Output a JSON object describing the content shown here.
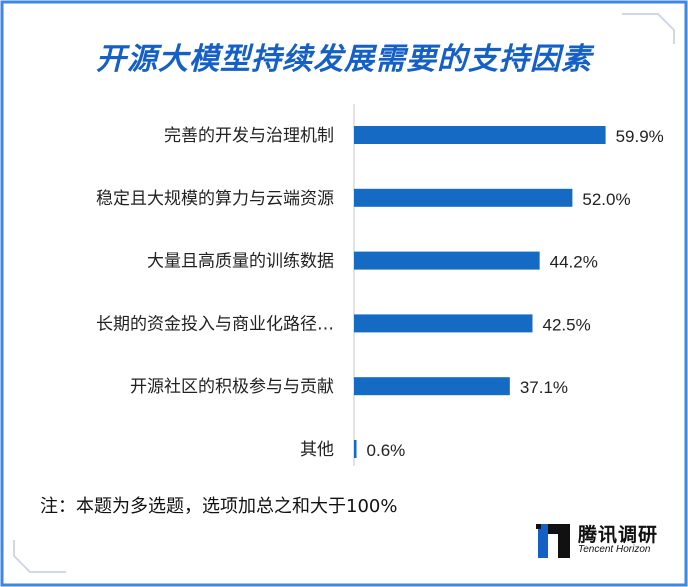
{
  "colors": {
    "accent": "#1460c6",
    "bar": "#156bc4",
    "frame": "#3f86e8"
  },
  "brand": {
    "name_cn": "腾讯调研",
    "name_en": "Tencent Horizon",
    "logo_icon": "tencent-horizon-logo-icon"
  },
  "note": "注：本题为多选题，选项加总之和大于100%",
  "chart_data": {
    "type": "bar",
    "orientation": "horizontal",
    "title": "开源大模型持续发展需要的支持因素",
    "categories": [
      "完善的开发与治理机制",
      "稳定且大规模的算力与云端资源",
      "大量且高质量的训练数据",
      "长期的资金投入与商业化路径…",
      "开源社区的积极参与与贡献",
      "其他"
    ],
    "values": [
      59.9,
      52.0,
      44.2,
      42.5,
      37.1,
      0.6
    ],
    "value_labels": [
      "59.9%",
      "52.0%",
      "44.2%",
      "42.5%",
      "37.1%",
      "0.6%"
    ],
    "xlim": [
      0,
      60
    ],
    "unit": "%",
    "grid": false,
    "legend": "none"
  }
}
